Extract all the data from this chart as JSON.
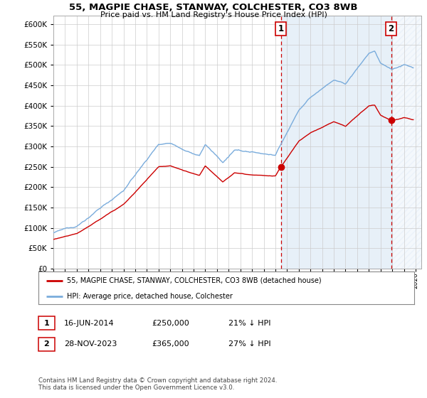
{
  "title": "55, MAGPIE CHASE, STANWAY, COLCHESTER, CO3 8WB",
  "subtitle": "Price paid vs. HM Land Registry's House Price Index (HPI)",
  "hpi_color": "#7aacdc",
  "price_color": "#cc0000",
  "shaded_fill_color": "#ddeeff",
  "annotation1_date": 2014.46,
  "annotation1_price": 250000,
  "annotation1_label": "1",
  "annotation2_date": 2023.91,
  "annotation2_price": 365000,
  "annotation2_label": "2",
  "legend_line1": "55, MAGPIE CHASE, STANWAY, COLCHESTER, CO3 8WB (detached house)",
  "legend_line2": "HPI: Average price, detached house, Colchester",
  "footnote": "Contains HM Land Registry data © Crown copyright and database right 2024.\nThis data is licensed under the Open Government Licence v3.0.",
  "ylim": [
    0,
    620000
  ],
  "xlim_start": 1995.0,
  "xlim_end": 2026.5,
  "background_color": "#ffffff",
  "grid_color": "#cccccc"
}
